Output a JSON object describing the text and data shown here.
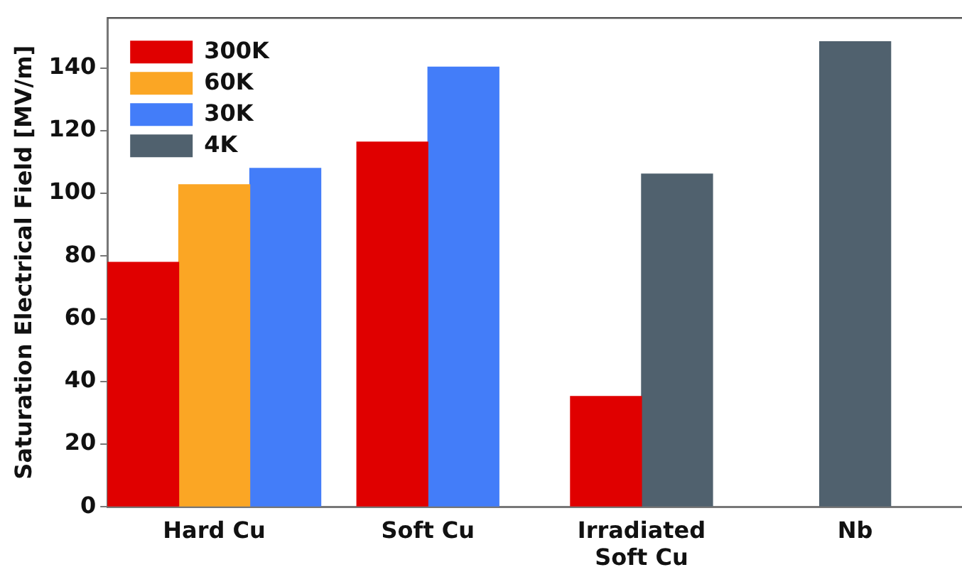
{
  "chart_data": {
    "type": "bar",
    "ylabel": "Saturation Electrical Field [MV/m]",
    "categories": [
      "Hard Cu",
      "Soft Cu",
      "Irradiated\nSoft Cu",
      "Nb"
    ],
    "series": [
      {
        "name": "300K",
        "color": "#e00000",
        "values": [
          78,
          116.4,
          35.2,
          null
        ]
      },
      {
        "name": "60K",
        "color": "#fba624",
        "values": [
          102.8,
          null,
          null,
          null
        ]
      },
      {
        "name": "30K",
        "color": "#437df9",
        "values": [
          108,
          140.3,
          null,
          null
        ]
      },
      {
        "name": "4K",
        "color": "#50616e",
        "values": [
          null,
          null,
          106.2,
          148.4
        ]
      }
    ],
    "ylim": [
      0,
      156
    ],
    "yticks": [
      0,
      20,
      40,
      60,
      80,
      100,
      120,
      140
    ],
    "grid": false,
    "legend": "top left"
  }
}
